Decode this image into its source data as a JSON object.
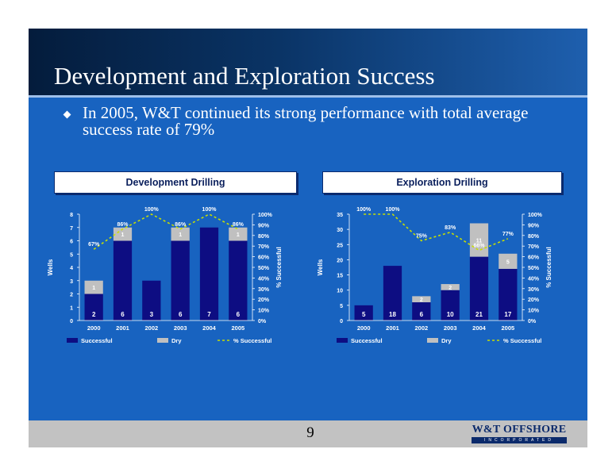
{
  "slide": {
    "title": "Development and Exploration Success",
    "bullet": "In 2005, W&T continued its strong performance with total average success rate of 79%",
    "page_number": "9",
    "logo": {
      "name": "W&T OFFSHORE",
      "tagline": "INCORPORATED"
    }
  },
  "colors": {
    "successful": "#0d0d82",
    "dry": "#c0c0c0",
    "pct_line": "#c8e000",
    "background": "#1863c0"
  },
  "chart_data": [
    {
      "type": "bar",
      "title": "Development Drilling",
      "categories": [
        "2000",
        "2001",
        "2002",
        "2003",
        "2004",
        "2005"
      ],
      "series": [
        {
          "name": "Successful",
          "values": [
            2,
            6,
            3,
            6,
            7,
            6
          ]
        },
        {
          "name": "Dry",
          "values": [
            1,
            1,
            0,
            1,
            0,
            1
          ]
        },
        {
          "name": "% Successful",
          "values": [
            67,
            86,
            100,
            86,
            100,
            86
          ],
          "type": "line",
          "axis": "right"
        }
      ],
      "ylabel": "Wells",
      "y2label": "% Successful",
      "ylim": [
        0,
        8
      ],
      "yticks": [
        0,
        1,
        2,
        3,
        4,
        5,
        6,
        7,
        8
      ],
      "y2lim": [
        0,
        100
      ],
      "y2ticks": [
        0,
        10,
        20,
        30,
        40,
        50,
        60,
        70,
        80,
        90,
        100
      ],
      "legend": {
        "placement": "bottom",
        "entries": [
          "Successful",
          "Dry",
          "% Successful"
        ]
      },
      "stacked": true
    },
    {
      "type": "bar",
      "title": "Exploration Drilling",
      "categories": [
        "2000",
        "2001",
        "2002",
        "2003",
        "2004",
        "2005"
      ],
      "series": [
        {
          "name": "Successful",
          "values": [
            5,
            18,
            6,
            10,
            21,
            17
          ]
        },
        {
          "name": "Dry",
          "values": [
            0,
            0,
            2,
            2,
            11,
            5
          ]
        },
        {
          "name": "% Successful",
          "values": [
            100,
            100,
            75,
            83,
            66,
            77
          ],
          "type": "line",
          "axis": "right"
        }
      ],
      "ylabel": "Wells",
      "y2label": "% Successful",
      "ylim": [
        0,
        35
      ],
      "yticks": [
        0,
        5,
        10,
        15,
        20,
        25,
        30,
        35
      ],
      "y2lim": [
        0,
        100
      ],
      "y2ticks": [
        0,
        10,
        20,
        30,
        40,
        50,
        60,
        70,
        80,
        90,
        100
      ],
      "legend": {
        "placement": "bottom",
        "entries": [
          "Successful",
          "Dry",
          "% Successful"
        ]
      },
      "stacked": true
    }
  ]
}
